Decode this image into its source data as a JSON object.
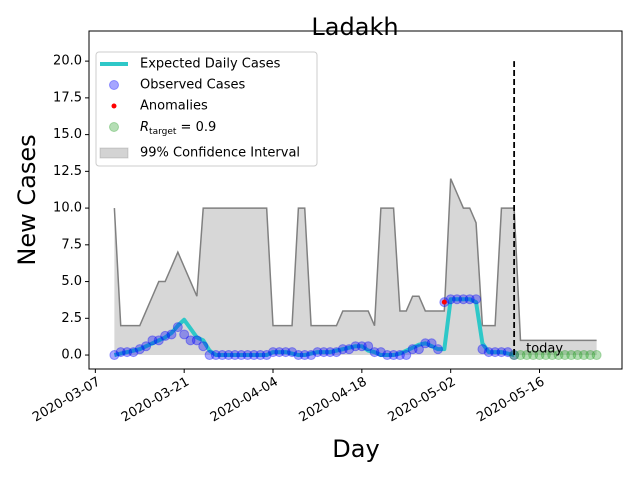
{
  "chart_data": {
    "type": "line",
    "title": "Ladakh",
    "x_label": "Day",
    "y_label": "New Cases",
    "xlim": [
      "2020-03-06",
      "2020-05-29"
    ],
    "xticks": [
      "2020-03-07",
      "2020-03-21",
      "2020-04-04",
      "2020-04-18",
      "2020-05-02",
      "2020-05-16"
    ],
    "ylim": [
      -0.95,
      22.05
    ],
    "yticks": [
      {
        "value": 0,
        "label": "0.0"
      },
      {
        "value": 2.5,
        "label": "2.5"
      },
      {
        "value": 5,
        "label": "5.0"
      },
      {
        "value": 7.5,
        "label": "7.5"
      },
      {
        "value": 10,
        "label": "10.0"
      },
      {
        "value": 12.5,
        "label": "12.5"
      },
      {
        "value": 15,
        "label": "15.0"
      },
      {
        "value": 17.5,
        "label": "17.5"
      },
      {
        "value": 20,
        "label": "20.0"
      }
    ],
    "x": [
      "2020-03-10",
      "2020-03-11",
      "2020-03-12",
      "2020-03-13",
      "2020-03-14",
      "2020-03-15",
      "2020-03-16",
      "2020-03-17",
      "2020-03-18",
      "2020-03-19",
      "2020-03-20",
      "2020-03-21",
      "2020-03-22",
      "2020-03-23",
      "2020-03-24",
      "2020-03-25",
      "2020-03-26",
      "2020-03-27",
      "2020-03-28",
      "2020-03-29",
      "2020-03-30",
      "2020-03-31",
      "2020-04-01",
      "2020-04-02",
      "2020-04-03",
      "2020-04-04",
      "2020-04-05",
      "2020-04-06",
      "2020-04-07",
      "2020-04-08",
      "2020-04-09",
      "2020-04-10",
      "2020-04-11",
      "2020-04-12",
      "2020-04-13",
      "2020-04-14",
      "2020-04-15",
      "2020-04-16",
      "2020-04-17",
      "2020-04-18",
      "2020-04-19",
      "2020-04-20",
      "2020-04-21",
      "2020-04-22",
      "2020-04-23",
      "2020-04-24",
      "2020-04-25",
      "2020-04-26",
      "2020-04-27",
      "2020-04-28",
      "2020-04-29",
      "2020-04-30",
      "2020-05-01",
      "2020-05-02",
      "2020-05-03",
      "2020-05-04",
      "2020-05-05",
      "2020-05-06",
      "2020-05-07",
      "2020-05-08",
      "2020-05-09",
      "2020-05-10",
      "2020-05-11",
      "2020-05-12",
      "2020-05-13",
      "2020-05-14",
      "2020-05-15",
      "2020-05-16",
      "2020-05-17",
      "2020-05-18",
      "2020-05-19",
      "2020-05-20",
      "2020-05-21",
      "2020-05-22",
      "2020-05-23",
      "2020-05-24",
      "2020-05-25"
    ],
    "confidence_interval": {
      "name": "99% Confidence Interval",
      "color": "#d3d3d3",
      "edge_color": "#808080",
      "upper": [
        10,
        2,
        2,
        2,
        2,
        3,
        4,
        5,
        5,
        6,
        7,
        6,
        5,
        4,
        10,
        10,
        10,
        10,
        10,
        10,
        10,
        10,
        10,
        10,
        10,
        2,
        2,
        2,
        2,
        10,
        10,
        2,
        2,
        2,
        2,
        2,
        3,
        3,
        3,
        3,
        3,
        2,
        10,
        10,
        10,
        3,
        3,
        4,
        4,
        3,
        3,
        3,
        3,
        12,
        11,
        10,
        10,
        9,
        2,
        2,
        2,
        10,
        10,
        10,
        1,
        1,
        1,
        1,
        1,
        1,
        1,
        1,
        1,
        1,
        1,
        1,
        1
      ],
      "lower": [
        0,
        0,
        0,
        0,
        0,
        0,
        0,
        0,
        0,
        0,
        0,
        0,
        0,
        0,
        0,
        0,
        0,
        0,
        0,
        0,
        0,
        0,
        0,
        0,
        0,
        0,
        0,
        0,
        0,
        0,
        0,
        0,
        0,
        0,
        0,
        0,
        0,
        0,
        0,
        0,
        0,
        0,
        0,
        0,
        0,
        0,
        0,
        0,
        0,
        0,
        0,
        0,
        0,
        0,
        0,
        0,
        0,
        0,
        0,
        0,
        0,
        0,
        0,
        0,
        0,
        0,
        0,
        0,
        0,
        0,
        0,
        0,
        0,
        0,
        0,
        0,
        0
      ]
    },
    "series": [
      {
        "name": "Expected Daily Cases",
        "kind": "line",
        "color": "#2ec8c8",
        "values": [
          0,
          0.1,
          0.2,
          0.3,
          0.4,
          0.6,
          0.8,
          1,
          1.2,
          1.5,
          2,
          2.4,
          1.8,
          1.2,
          1,
          0.3,
          0,
          0,
          0,
          0,
          0,
          0,
          0,
          0,
          0,
          0.2,
          0.2,
          0.2,
          0.1,
          0,
          0,
          0.1,
          0.2,
          0.2,
          0.2,
          0.3,
          0.4,
          0.5,
          0.6,
          0.6,
          0.3,
          0.2,
          0,
          0,
          0,
          0.1,
          0.3,
          0.5,
          0.7,
          0.8,
          0.6,
          0.4,
          0.4,
          3.8,
          3.8,
          3.8,
          3.8,
          3.6,
          0.8,
          0.2,
          0.2,
          0.2,
          0.1,
          0,
          null,
          null,
          null,
          null,
          null,
          null,
          null,
          null,
          null,
          null,
          null,
          null,
          null
        ]
      },
      {
        "name": "Observed Cases",
        "kind": "points",
        "color": "#0000ff",
        "values": [
          0,
          0.2,
          0.2,
          0.2,
          0.4,
          0.6,
          1,
          1,
          1.3,
          1.4,
          1.9,
          1.4,
          1,
          1,
          0.6,
          0,
          0,
          0,
          0,
          0,
          0,
          0,
          0,
          0,
          0,
          0.2,
          0.2,
          0.2,
          0.2,
          0,
          0,
          0,
          0.2,
          0.2,
          0.2,
          0.2,
          0.4,
          0.4,
          0.6,
          0.6,
          0.6,
          0.2,
          0.2,
          0,
          0,
          0,
          0,
          0.4,
          0.4,
          0.8,
          0.8,
          0.4,
          3.6,
          3.8,
          3.8,
          3.8,
          3.8,
          3.8,
          0.4,
          0.2,
          0.2,
          0.2,
          0.2,
          0,
          null,
          null,
          null,
          null,
          null,
          null,
          null,
          null,
          null,
          null,
          null,
          null,
          null
        ]
      },
      {
        "name": "Anomalies",
        "kind": "dots",
        "color": "#ff0000",
        "values": [
          null,
          null,
          null,
          null,
          null,
          null,
          null,
          null,
          null,
          null,
          null,
          null,
          null,
          null,
          null,
          null,
          null,
          null,
          null,
          null,
          null,
          null,
          null,
          null,
          null,
          null,
          null,
          null,
          null,
          null,
          null,
          null,
          null,
          null,
          null,
          null,
          null,
          null,
          null,
          null,
          null,
          null,
          null,
          null,
          null,
          null,
          null,
          null,
          null,
          null,
          null,
          null,
          3.6,
          null,
          null,
          null,
          null,
          null,
          null,
          null,
          null,
          null,
          null,
          null,
          null,
          null,
          null,
          null,
          null,
          null,
          null,
          null,
          null,
          null,
          null,
          null,
          null
        ]
      },
      {
        "name": {
          "base": "R",
          "sub": "target",
          "rest": " = 0.9"
        },
        "kind": "points",
        "color": "#2ca02c",
        "values": [
          null,
          null,
          null,
          null,
          null,
          null,
          null,
          null,
          null,
          null,
          null,
          null,
          null,
          null,
          null,
          null,
          null,
          null,
          null,
          null,
          null,
          null,
          null,
          null,
          null,
          null,
          null,
          null,
          null,
          null,
          null,
          null,
          null,
          null,
          null,
          null,
          null,
          null,
          null,
          null,
          null,
          null,
          null,
          null,
          null,
          null,
          null,
          null,
          null,
          null,
          null,
          null,
          null,
          null,
          null,
          null,
          null,
          null,
          null,
          null,
          null,
          null,
          null,
          0,
          0,
          0,
          0,
          0,
          0,
          0,
          0,
          0,
          0,
          0,
          0,
          0,
          0
        ]
      }
    ],
    "today_line": {
      "x": "2020-05-12",
      "ymin": 0,
      "ymax": 20,
      "label": "today"
    },
    "legend": "upper left"
  }
}
